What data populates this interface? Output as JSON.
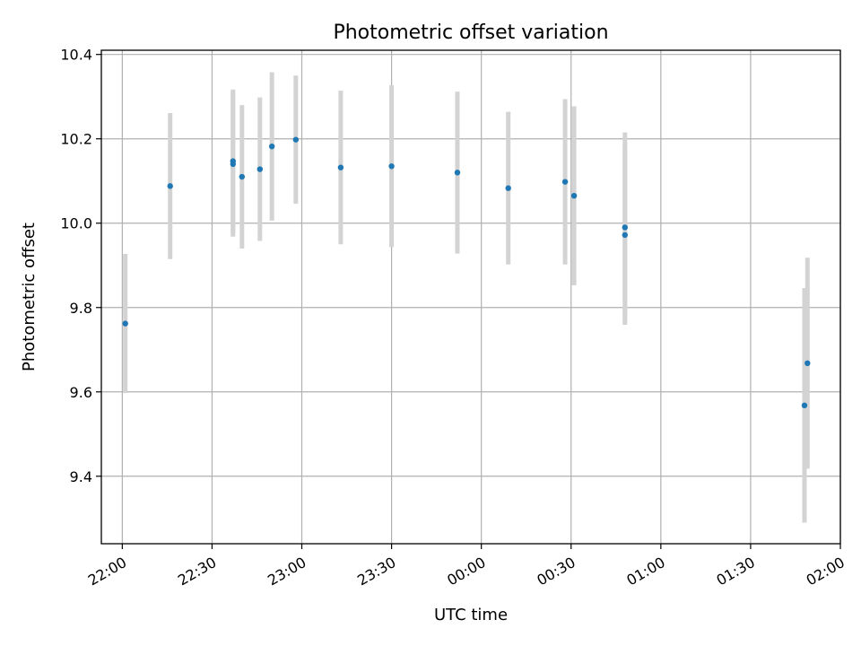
{
  "chart_data": {
    "type": "scatter",
    "title": "Photometric offset variation",
    "xlabel": "UTC time",
    "ylabel": "Photometric offset",
    "grid": true,
    "legend": "none",
    "x_axis_type": "time",
    "xlim": [
      "21:53",
      "02:00"
    ],
    "ylim": [
      9.24,
      10.41
    ],
    "x_ticks": [
      "22:00",
      "22:30",
      "23:00",
      "23:30",
      "00:00",
      "00:30",
      "01:00",
      "01:30",
      "02:00"
    ],
    "y_ticks": [
      "9.4",
      "9.6",
      "9.8",
      "10.0",
      "10.2",
      "10.4"
    ],
    "colors": {
      "points": "#1f77b4",
      "error_bars": "#d3d3d3",
      "grid": "#b0b0b0"
    },
    "series": [
      {
        "points": [
          {
            "x": "22:01",
            "y": 9.762,
            "yerr": 0.165
          },
          {
            "x": "22:16",
            "y": 10.088,
            "yerr": 0.173
          },
          {
            "x": "22:37",
            "y": 10.14,
            "yerr": 0.172
          },
          {
            "x": "22:37",
            "y": 10.147,
            "yerr": 0.17
          },
          {
            "x": "22:40",
            "y": 10.11,
            "yerr": 0.17
          },
          {
            "x": "22:46",
            "y": 10.128,
            "yerr": 0.17
          },
          {
            "x": "22:50",
            "y": 10.182,
            "yerr": 0.176
          },
          {
            "x": "22:58",
            "y": 10.198,
            "yerr": 0.152
          },
          {
            "x": "23:13",
            "y": 10.132,
            "yerr": 0.182
          },
          {
            "x": "23:30",
            "y": 10.135,
            "yerr": 0.192
          },
          {
            "x": "23:52",
            "y": 10.12,
            "yerr": 0.192
          },
          {
            "x": "00:09",
            "y": 10.083,
            "yerr": 0.181
          },
          {
            "x": "00:28",
            "y": 10.098,
            "yerr": 0.196
          },
          {
            "x": "00:31",
            "y": 10.065,
            "yerr": 0.212
          },
          {
            "x": "00:48",
            "y": 9.972,
            "yerr": 0.213
          },
          {
            "x": "00:48",
            "y": 9.99,
            "yerr": 0.225
          },
          {
            "x": "01:48",
            "y": 9.568,
            "yerr": 0.278
          },
          {
            "x": "01:49",
            "y": 9.668,
            "yerr": 0.25
          }
        ]
      }
    ]
  }
}
